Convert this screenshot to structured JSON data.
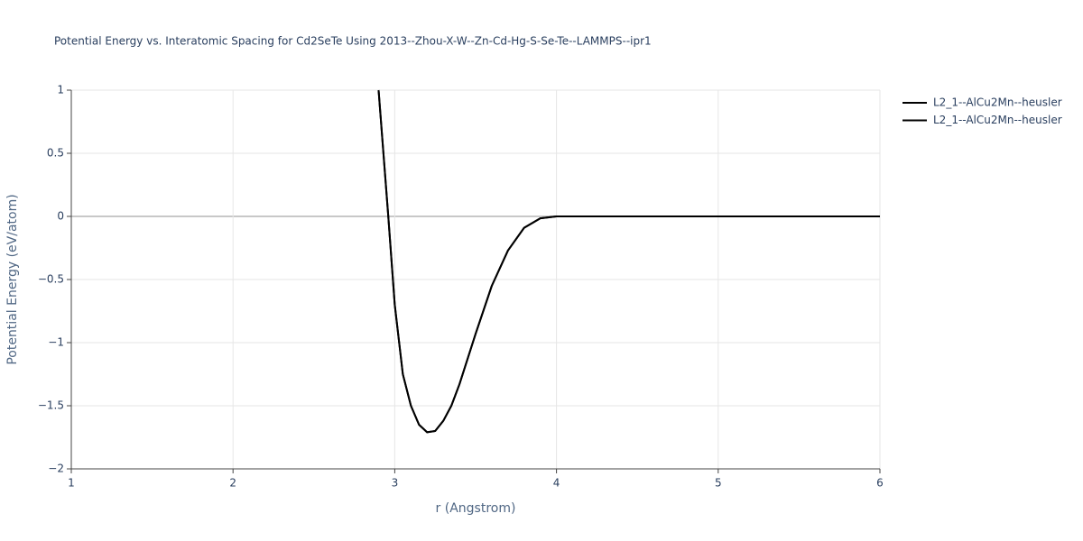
{
  "chart_data": {
    "type": "line",
    "title": "Potential Energy vs. Interatomic Spacing for Cd2SeTe Using 2013--Zhou-X-W--Zn-Cd-Hg-S-Se-Te--LAMMPS--ipr1",
    "x_label": "r (Angstrom)",
    "y_label": "Potential Energy (eV/atom)",
    "x": [
      2.9,
      2.96,
      3.0,
      3.05,
      3.1,
      3.15,
      3.2,
      3.25,
      3.3,
      3.35,
      3.4,
      3.5,
      3.6,
      3.7,
      3.8,
      3.9,
      4.0,
      4.5,
      5.0,
      5.5,
      6.0
    ],
    "series": [
      {
        "name": "L2_1--AlCu2Mn--heusler",
        "color": "#000000",
        "values": [
          1.0,
          0.0,
          -0.7,
          -1.25,
          -1.5,
          -1.65,
          -1.71,
          -1.7,
          -1.62,
          -1.5,
          -1.33,
          -0.93,
          -0.55,
          -0.27,
          -0.09,
          -0.015,
          0.0,
          0.0,
          0.0,
          0.0,
          0.0
        ]
      },
      {
        "name": "L2_1--AlCu2Mn--heusler",
        "color": "#000000",
        "values": [
          1.0,
          0.0,
          -0.7,
          -1.25,
          -1.5,
          -1.65,
          -1.71,
          -1.7,
          -1.62,
          -1.5,
          -1.33,
          -0.93,
          -0.55,
          -0.27,
          -0.09,
          -0.015,
          0.0,
          0.0,
          0.0,
          0.0,
          0.0
        ]
      }
    ],
    "xlim": [
      1,
      6
    ],
    "xticks": [
      1,
      2,
      3,
      4,
      5,
      6
    ],
    "ylim": [
      -2,
      1
    ],
    "yticks": [
      1,
      0.5,
      0,
      {
        "value": -0.5,
        "label": "−0.5"
      },
      {
        "value": -1,
        "label": "−1"
      },
      {
        "value": -1.5,
        "label": "−1.5"
      },
      {
        "value": -2,
        "label": "−2"
      }
    ],
    "grid": true
  }
}
